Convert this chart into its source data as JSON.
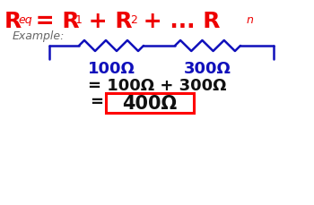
{
  "bg_color": "#ffffff",
  "red_color": "#ee0000",
  "blue_color": "#1010bb",
  "dark_color": "#111111",
  "gray_color": "#666666",
  "example_label": "Example:",
  "r1_label": "100Ω",
  "r2_label": "300Ω",
  "eq_line": "= 100Ω + 300Ω",
  "result_boxed": "400Ω",
  "circuit": {
    "wire_color": "#1010bb",
    "wire_lw": 1.8
  }
}
